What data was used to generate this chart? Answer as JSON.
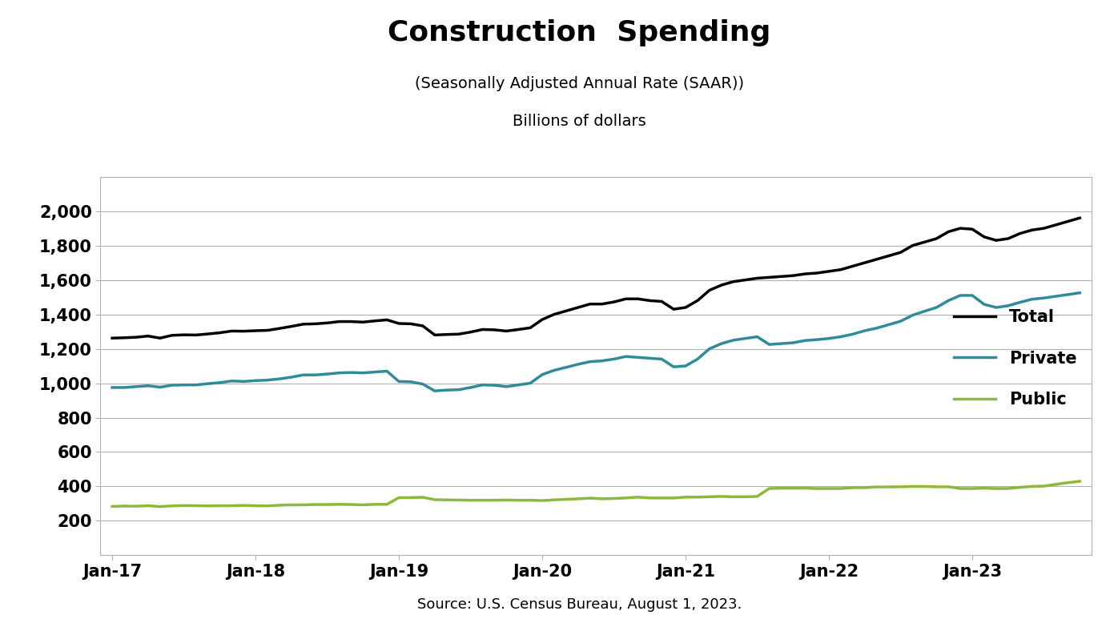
{
  "title": "Construction  Spending",
  "subtitle1": "(Seasonally Adjusted Annual Rate (SAAR))",
  "subtitle2": "Billions of dollars",
  "source": "Source: U.S. Census Bureau, August 1, 2023.",
  "x_tick_labels": [
    "Jan-17",
    "Jan-18",
    "Jan-19",
    "Jan-20",
    "Jan-21",
    "Jan-22",
    "Jan-23"
  ],
  "ylim": [
    0,
    2200
  ],
  "yticks": [
    200,
    400,
    600,
    800,
    1000,
    1200,
    1400,
    1600,
    1800,
    2000
  ],
  "line_colors": {
    "Total": "#000000",
    "Private": "#2e8b9a",
    "Public": "#8db83a"
  },
  "line_widths": {
    "Total": 2.5,
    "Private": 2.5,
    "Public": 2.5
  },
  "total": [
    1262,
    1264,
    1267,
    1274,
    1262,
    1278,
    1281,
    1280,
    1286,
    1293,
    1303,
    1302,
    1305,
    1307,
    1318,
    1330,
    1343,
    1345,
    1350,
    1358,
    1358,
    1355,
    1362,
    1368,
    1347,
    1345,
    1333,
    1280,
    1283,
    1285,
    1297,
    1312,
    1310,
    1303,
    1312,
    1322,
    1370,
    1400,
    1420,
    1440,
    1460,
    1460,
    1472,
    1490,
    1490,
    1480,
    1475,
    1430,
    1440,
    1480,
    1540,
    1570,
    1590,
    1600,
    1610,
    1615,
    1620,
    1625,
    1635,
    1640,
    1650,
    1660,
    1680,
    1700,
    1720,
    1740,
    1760,
    1800,
    1820,
    1840,
    1880,
    1900,
    1895,
    1850,
    1830,
    1840,
    1870,
    1890,
    1900,
    1920,
    1940,
    1960
  ],
  "private": [
    975,
    975,
    980,
    985,
    977,
    988,
    990,
    990,
    997,
    1003,
    1013,
    1010,
    1015,
    1018,
    1025,
    1035,
    1048,
    1048,
    1053,
    1060,
    1062,
    1060,
    1065,
    1070,
    1010,
    1008,
    995,
    955,
    960,
    962,
    975,
    990,
    988,
    980,
    990,
    1000,
    1050,
    1075,
    1092,
    1110,
    1125,
    1130,
    1140,
    1155,
    1150,
    1145,
    1140,
    1095,
    1100,
    1140,
    1200,
    1230,
    1250,
    1260,
    1270,
    1225,
    1230,
    1235,
    1248,
    1253,
    1260,
    1270,
    1285,
    1305,
    1320,
    1340,
    1360,
    1395,
    1418,
    1440,
    1480,
    1510,
    1510,
    1458,
    1440,
    1450,
    1470,
    1488,
    1495,
    1505,
    1515,
    1525
  ],
  "public": [
    284,
    286,
    285,
    288,
    283,
    287,
    289,
    288,
    287,
    288,
    288,
    290,
    288,
    287,
    291,
    293,
    293,
    295,
    295,
    296,
    295,
    293,
    296,
    296,
    335,
    335,
    337,
    323,
    322,
    321,
    320,
    320,
    320,
    321,
    320,
    320,
    318,
    322,
    325,
    328,
    332,
    328,
    330,
    333,
    338,
    333,
    333,
    333,
    338,
    338,
    340,
    342,
    340,
    340,
    342,
    388,
    390,
    390,
    390,
    388,
    388,
    388,
    393,
    393,
    397,
    397,
    398,
    400,
    400,
    398,
    398,
    388,
    388,
    390,
    388,
    388,
    395,
    400,
    402,
    412,
    422,
    430
  ],
  "background_color": "#ffffff",
  "legend_labels": [
    "Total",
    "Private",
    "Public"
  ]
}
